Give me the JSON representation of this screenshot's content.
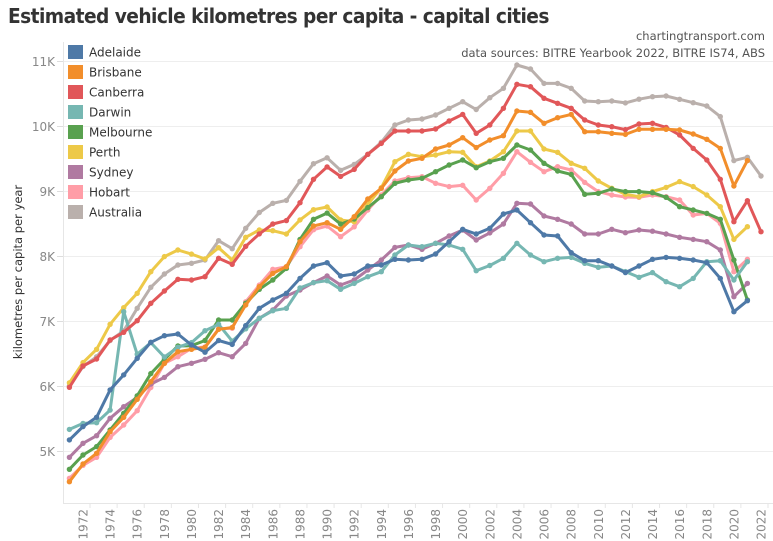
{
  "chart_data": {
    "type": "line",
    "title": "Estimated vehicle kilometres per capita - capital cities",
    "credits": [
      "chartingtransport.com",
      "data sources: BITRE Yearbook 2022, BITRE IS74, ABS"
    ],
    "xlabel": "",
    "ylabel": "kilometres per capita per year",
    "xlim": [
      1971,
      2022
    ],
    "ylim": [
      4300,
      11250
    ],
    "x_ticks": [
      "1972",
      "1974",
      "1976",
      "1978",
      "1980",
      "1982",
      "1984",
      "1986",
      "1988",
      "1990",
      "1992",
      "1994",
      "1996",
      "1998",
      "2000",
      "2002",
      "2004",
      "2006",
      "2008",
      "2010",
      "2012",
      "2014",
      "2016",
      "2018",
      "2020",
      "2022"
    ],
    "y_ticks": [
      {
        "value": 5000,
        "label": "5K"
      },
      {
        "value": 6000,
        "label": "6K"
      },
      {
        "value": 7000,
        "label": "7K"
      },
      {
        "value": 8000,
        "label": "8K"
      },
      {
        "value": 9000,
        "label": "9K"
      },
      {
        "value": 10000,
        "label": "10K"
      },
      {
        "value": 11000,
        "label": "11K"
      }
    ],
    "grid": "horizontal",
    "legend_position": "top-left",
    "x_start": 1971,
    "series": [
      {
        "name": "Adelaide",
        "color": "#4e79a7",
        "values": [
          5170,
          5375,
          5518,
          5940,
          6170,
          6426,
          6672,
          6774,
          6800,
          6631,
          6520,
          6700,
          6640,
          6930,
          7195,
          7323,
          7426,
          7656,
          7846,
          7897,
          7692,
          7723,
          7846,
          7862,
          7949,
          7938,
          7949,
          8031,
          8220,
          8410,
          8338,
          8426,
          8646,
          8708,
          8513,
          8323,
          8308,
          8051,
          7928,
          7928,
          7846,
          7744,
          7846,
          7950,
          7979,
          7964,
          7938,
          7897,
          7656,
          7143,
          7313
        ]
      },
      {
        "name": "Brisbane",
        "color": "#f28e2b",
        "values": [
          4528,
          4800,
          4965,
          5297,
          5518,
          5795,
          6066,
          6349,
          6528,
          6564,
          6595,
          6872,
          6900,
          7246,
          7528,
          7733,
          7836,
          8220,
          8462,
          8513,
          8410,
          8605,
          8877,
          9041,
          9308,
          9462,
          9503,
          9646,
          9708,
          9820,
          9667,
          9785,
          9851,
          10231,
          10210,
          10041,
          10128,
          10179,
          9913,
          9913,
          9887,
          9870,
          9949,
          9949,
          9949,
          9938,
          9877,
          9795,
          9656,
          9077,
          9467
        ]
      },
      {
        "name": "Canberra",
        "color": "#e15759",
        "values": [
          5980,
          6310,
          6415,
          6708,
          6826,
          7005,
          7272,
          7462,
          7641,
          7631,
          7682,
          7964,
          7872,
          8150,
          8340,
          8492,
          8544,
          8820,
          9180,
          9370,
          9225,
          9333,
          9564,
          9733,
          9923,
          9923,
          9923,
          9954,
          10077,
          10179,
          9887,
          10015,
          10272,
          10641,
          10605,
          10426,
          10349,
          10272,
          10092,
          10015,
          9990,
          9945,
          10031,
          10041,
          9979,
          9862,
          9656,
          9477,
          9180,
          8528,
          8851,
          8374
        ]
      },
      {
        "name": "Darwin",
        "color": "#76b7b2",
        "values": [
          5333,
          5425,
          5435,
          5630,
          7143,
          6488,
          6667,
          6446,
          6595,
          6667,
          6851,
          6950,
          6690,
          6880,
          7041,
          7159,
          7195,
          7510,
          7590,
          7620,
          7487,
          7579,
          7682,
          7759,
          8015,
          8169,
          8143,
          8195,
          8169,
          8103,
          7774,
          7854,
          7964,
          8195,
          8015,
          7913,
          7964,
          7979,
          7887,
          7826,
          7846,
          7760,
          7672,
          7744,
          7605,
          7528,
          7656,
          7913,
          7928,
          7631,
          7913
        ]
      },
      {
        "name": "Melbourne",
        "color": "#59a14f",
        "values": [
          4718,
          4938,
          5067,
          5323,
          5580,
          5850,
          6190,
          6410,
          6615,
          6620,
          6700,
          7015,
          7015,
          7272,
          7487,
          7631,
          7810,
          8256,
          8564,
          8660,
          8490,
          8569,
          8744,
          8913,
          9118,
          9169,
          9195,
          9297,
          9400,
          9477,
          9359,
          9451,
          9503,
          9708,
          9631,
          9426,
          9308,
          9256,
          8949,
          8964,
          9031,
          8990,
          8990,
          8974,
          8903,
          8759,
          8708,
          8656,
          8564,
          7938,
          7323
        ]
      },
      {
        "name": "Perth",
        "color": "#edc948",
        "values": [
          6050,
          6360,
          6565,
          6950,
          7205,
          7426,
          7758,
          7990,
          8092,
          8030,
          7954,
          8128,
          7938,
          8287,
          8400,
          8390,
          8338,
          8556,
          8713,
          8754,
          8554,
          8528,
          8795,
          9051,
          9451,
          9564,
          9528,
          9554,
          9605,
          9595,
          9374,
          9462,
          9605,
          9923,
          9923,
          9646,
          9595,
          9426,
          9349,
          9154,
          9041,
          8950,
          8913,
          8990,
          9056,
          9144,
          9067,
          8938,
          8759,
          8256,
          8451
        ]
      },
      {
        "name": "Sydney",
        "color": "#b07aa1",
        "values": [
          4903,
          5118,
          5235,
          5503,
          5682,
          5826,
          6030,
          6133,
          6297,
          6349,
          6410,
          6513,
          6451,
          6656,
          7041,
          7169,
          7385,
          7477,
          7590,
          7692,
          7554,
          7631,
          7785,
          7938,
          8133,
          8169,
          8103,
          8195,
          8308,
          8400,
          8246,
          8356,
          8492,
          8810,
          8800,
          8615,
          8564,
          8492,
          8338,
          8338,
          8410,
          8359,
          8400,
          8382,
          8338,
          8287,
          8256,
          8220,
          8092,
          7374,
          7579
        ]
      },
      {
        "name": "Hobart",
        "color": "#ff9da7",
        "values": [
          4580,
          4780,
          4903,
          5210,
          5400,
          5620,
          5977,
          6349,
          6451,
          6580,
          6600,
          6880,
          6890,
          7296,
          7553,
          7795,
          7836,
          8143,
          8405,
          8462,
          8297,
          8450,
          8708,
          8938,
          9154,
          9205,
          9220,
          9118,
          9067,
          9087,
          8862,
          9041,
          9272,
          9605,
          9441,
          9297,
          9374,
          9323,
          9133,
          8990,
          8938,
          8908,
          8903,
          8938,
          8913,
          8862,
          8631,
          8656,
          8503,
          7759,
          7949
        ]
      },
      {
        "name": "Australia",
        "color": "#bab0ac",
        "values": [
          6000,
          6300,
          6450,
          6700,
          6850,
          7195,
          7518,
          7723,
          7862,
          7887,
          7938,
          8236,
          8113,
          8426,
          8669,
          8810,
          8856,
          9149,
          9420,
          9510,
          9318,
          9410,
          9564,
          9749,
          10015,
          10092,
          10108,
          10169,
          10272,
          10374,
          10254,
          10436,
          10580,
          10938,
          10877,
          10656,
          10656,
          10580,
          10385,
          10374,
          10385,
          10356,
          10412,
          10451,
          10462,
          10410,
          10359,
          10308,
          10144,
          9467,
          9518,
          9231
        ]
      }
    ]
  }
}
